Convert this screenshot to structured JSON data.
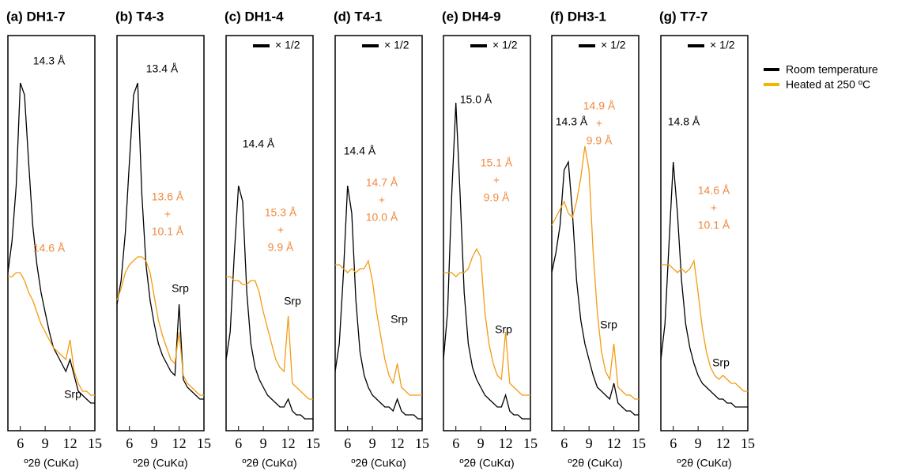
{
  "chart_data": [
    {
      "type": "line",
      "title": "(a) DH1-7",
      "x_label": "º2θ (CuKα)",
      "xlim": [
        4.5,
        15
      ],
      "xticks": [
        6,
        9,
        12,
        15
      ],
      "ylim": [
        0,
        100
      ],
      "x": [
        4.5,
        5,
        5.5,
        6,
        6.5,
        7,
        7.5,
        8,
        8.5,
        9,
        9.5,
        10,
        10.5,
        11,
        11.5,
        12,
        12.5,
        13,
        13.5,
        14,
        14.5,
        15
      ],
      "series": [
        {
          "name": "Room temperature",
          "color": "#000000",
          "values": [
            40,
            48,
            62,
            88,
            85,
            68,
            52,
            42,
            35,
            30,
            25,
            21,
            19,
            17,
            15,
            18,
            14,
            10,
            9,
            8,
            7,
            7
          ]
        },
        {
          "name": "Heated at 250 ºC",
          "color": "#f39c12",
          "values": [
            39,
            39,
            40,
            40,
            38,
            35,
            33,
            30,
            27,
            25,
            23,
            21,
            20,
            19,
            18,
            23,
            15,
            12,
            10,
            10,
            9,
            9
          ]
        }
      ],
      "annotations": [
        {
          "lines": [
            "14.3 Å"
          ],
          "color": "#000000"
        },
        {
          "lines": [
            "14.6 Å"
          ],
          "color": "#f0883e"
        },
        {
          "lines": [
            "Srp"
          ],
          "color": "#000000"
        }
      ]
    },
    {
      "type": "line",
      "title": "(b) T4-3",
      "x_label": "º2θ (CuKα)",
      "xlim": [
        4.5,
        15
      ],
      "xticks": [
        6,
        9,
        12,
        15
      ],
      "ylim": [
        0,
        100
      ],
      "x": [
        4.5,
        5,
        5.5,
        6,
        6.5,
        7,
        7.5,
        8,
        8.5,
        9,
        9.5,
        10,
        10.5,
        11,
        11.5,
        12,
        12.5,
        13,
        13.5,
        14,
        14.5,
        15
      ],
      "series": [
        {
          "color": "#000000",
          "values": [
            32,
            38,
            50,
            68,
            85,
            88,
            60,
            42,
            33,
            27,
            22,
            19,
            17,
            15,
            14,
            32,
            13,
            11,
            10,
            9,
            8,
            8
          ]
        },
        {
          "color": "#f39c12",
          "values": [
            33,
            36,
            40,
            42,
            43,
            44,
            44,
            43,
            40,
            34,
            28,
            24,
            21,
            18,
            17,
            25,
            14,
            12,
            11,
            10,
            9,
            9
          ]
        }
      ],
      "annotations": [
        {
          "lines": [
            "13.4 Å"
          ],
          "color": "#000000"
        },
        {
          "lines": [
            "13.6 Å",
            "+",
            "10.1 Å"
          ],
          "color": "#f0883e"
        },
        {
          "lines": [
            "Srp"
          ],
          "color": "#000000"
        }
      ]
    },
    {
      "type": "line",
      "title": "(c) DH1-4",
      "x_label": "º2θ (CuKα)",
      "xlim": [
        4.5,
        15
      ],
      "xticks": [
        6,
        9,
        12,
        15
      ],
      "ylim": [
        0,
        100
      ],
      "scale_note": "× 1/2",
      "x": [
        4.5,
        5,
        5.5,
        6,
        6.5,
        7,
        7.5,
        8,
        8.5,
        9,
        9.5,
        10,
        10.5,
        11,
        11.5,
        12,
        12.5,
        13,
        13.5,
        14,
        14.5,
        15
      ],
      "series": [
        {
          "color": "#000000",
          "values": [
            18,
            25,
            45,
            62,
            58,
            35,
            22,
            16,
            13,
            11,
            9,
            8,
            7,
            6,
            6,
            8,
            5,
            4,
            4,
            3,
            3,
            3
          ]
        },
        {
          "color": "#f39c12",
          "values": [
            39,
            39,
            38,
            38,
            37,
            37,
            38,
            38,
            35,
            30,
            26,
            22,
            18,
            16,
            15,
            29,
            12,
            11,
            10,
            9,
            8,
            8
          ]
        }
      ],
      "annotations": [
        {
          "lines": [
            "14.4 Å"
          ],
          "color": "#000000"
        },
        {
          "lines": [
            "15.3 Å",
            "+",
            "9.9 Å"
          ],
          "color": "#f0883e"
        },
        {
          "lines": [
            "Srp"
          ],
          "color": "#000000"
        }
      ]
    },
    {
      "type": "line",
      "title": "(d) T4-1",
      "x_label": "º2θ (CuKα)",
      "xlim": [
        4.5,
        15
      ],
      "xticks": [
        6,
        9,
        12,
        15
      ],
      "ylim": [
        0,
        100
      ],
      "scale_note": "× 1/2",
      "x": [
        4.5,
        5,
        5.5,
        6,
        6.5,
        7,
        7.5,
        8,
        8.5,
        9,
        9.5,
        10,
        10.5,
        11,
        11.5,
        12,
        12.5,
        13,
        13.5,
        14,
        14.5,
        15
      ],
      "series": [
        {
          "color": "#000000",
          "values": [
            15,
            22,
            40,
            62,
            55,
            33,
            20,
            14,
            11,
            9,
            8,
            7,
            6,
            6,
            5,
            8,
            5,
            4,
            4,
            4,
            3,
            3
          ]
        },
        {
          "color": "#f39c12",
          "values": [
            42,
            42,
            41,
            40,
            41,
            40,
            41,
            41,
            43,
            38,
            30,
            24,
            18,
            14,
            12,
            17,
            11,
            10,
            9,
            9,
            9,
            9
          ]
        }
      ],
      "annotations": [
        {
          "lines": [
            "14.4 Å"
          ],
          "color": "#000000"
        },
        {
          "lines": [
            "14.7 Å",
            "+",
            "10.0 Å"
          ],
          "color": "#f0883e"
        },
        {
          "lines": [
            "Srp"
          ],
          "color": "#000000"
        }
      ]
    },
    {
      "type": "line",
      "title": "(e) DH4-9",
      "x_label": "º2θ (CuKα)",
      "xlim": [
        4.5,
        15
      ],
      "xticks": [
        6,
        9,
        12,
        15
      ],
      "ylim": [
        0,
        100
      ],
      "scale_note": "× 1/2",
      "x": [
        4.5,
        5,
        5.5,
        6,
        6.5,
        7,
        7.5,
        8,
        8.5,
        9,
        9.5,
        10,
        10.5,
        11,
        11.5,
        12,
        12.5,
        13,
        13.5,
        14,
        14.5,
        15
      ],
      "series": [
        {
          "color": "#000000",
          "values": [
            18,
            30,
            60,
            83,
            60,
            35,
            22,
            16,
            13,
            11,
            9,
            8,
            7,
            6,
            6,
            9,
            5,
            4,
            4,
            3,
            3,
            3
          ]
        },
        {
          "color": "#f39c12",
          "values": [
            40,
            40,
            40,
            39,
            40,
            40,
            41,
            44,
            46,
            44,
            30,
            22,
            17,
            14,
            13,
            25,
            12,
            11,
            10,
            9,
            9,
            9
          ]
        }
      ],
      "annotations": [
        {
          "lines": [
            "15.0 Å"
          ],
          "color": "#000000"
        },
        {
          "lines": [
            "15.1 Å",
            "+",
            "9.9 Å"
          ],
          "color": "#f0883e"
        },
        {
          "lines": [
            "Srp"
          ],
          "color": "#000000"
        }
      ]
    },
    {
      "type": "line",
      "title": "(f) DH3-1",
      "x_label": "º2θ (CuKα)",
      "xlim": [
        4.5,
        15
      ],
      "xticks": [
        6,
        9,
        12,
        15
      ],
      "ylim": [
        0,
        100
      ],
      "scale_note": "× 1/2",
      "x": [
        4.5,
        5,
        5.5,
        6,
        6.5,
        7,
        7.5,
        8,
        8.5,
        9,
        9.5,
        10,
        10.5,
        11,
        11.5,
        12,
        12.5,
        13,
        13.5,
        14,
        14.5,
        15
      ],
      "series": [
        {
          "color": "#000000",
          "values": [
            40,
            45,
            52,
            66,
            68,
            55,
            38,
            28,
            22,
            18,
            14,
            11,
            10,
            9,
            8,
            12,
            7,
            6,
            5,
            5,
            4,
            4
          ]
        },
        {
          "color": "#f39c12",
          "values": [
            52,
            54,
            56,
            58,
            55,
            54,
            58,
            64,
            72,
            66,
            45,
            30,
            20,
            15,
            13,
            22,
            11,
            10,
            9,
            9,
            8,
            8
          ]
        }
      ],
      "annotations": [
        {
          "lines": [
            "14.3 Å"
          ],
          "color": "#000000"
        },
        {
          "lines": [
            "14.9 Å",
            "+",
            "9.9 Å"
          ],
          "color": "#f0883e"
        },
        {
          "lines": [
            "Srp"
          ],
          "color": "#000000"
        }
      ]
    },
    {
      "type": "line",
      "title": "(g) T7-7",
      "x_label": "º2θ (CuKα)",
      "xlim": [
        4.5,
        15
      ],
      "xticks": [
        6,
        9,
        12,
        15
      ],
      "ylim": [
        0,
        100
      ],
      "scale_note": "× 1/2",
      "x": [
        4.5,
        5,
        5.5,
        6,
        6.5,
        7,
        7.5,
        8,
        8.5,
        9,
        9.5,
        10,
        10.5,
        11,
        11.5,
        12,
        12.5,
        13,
        13.5,
        14,
        14.5,
        15
      ],
      "series": [
        {
          "color": "#000000",
          "values": [
            18,
            27,
            48,
            68,
            55,
            38,
            27,
            21,
            17,
            14,
            12,
            11,
            10,
            9,
            8,
            8,
            7,
            7,
            6,
            6,
            6,
            6
          ]
        },
        {
          "color": "#f39c12",
          "values": [
            42,
            42,
            42,
            41,
            40,
            41,
            40,
            41,
            43,
            35,
            26,
            20,
            16,
            14,
            13,
            14,
            13,
            12,
            12,
            11,
            10,
            10
          ]
        }
      ],
      "annotations": [
        {
          "lines": [
            "14.8 Å"
          ],
          "color": "#000000"
        },
        {
          "lines": [
            "14.6 Å",
            "+",
            "10.1 Å"
          ],
          "color": "#f0883e"
        },
        {
          "lines": [
            "Srp"
          ],
          "color": "#000000"
        }
      ]
    }
  ]
}
